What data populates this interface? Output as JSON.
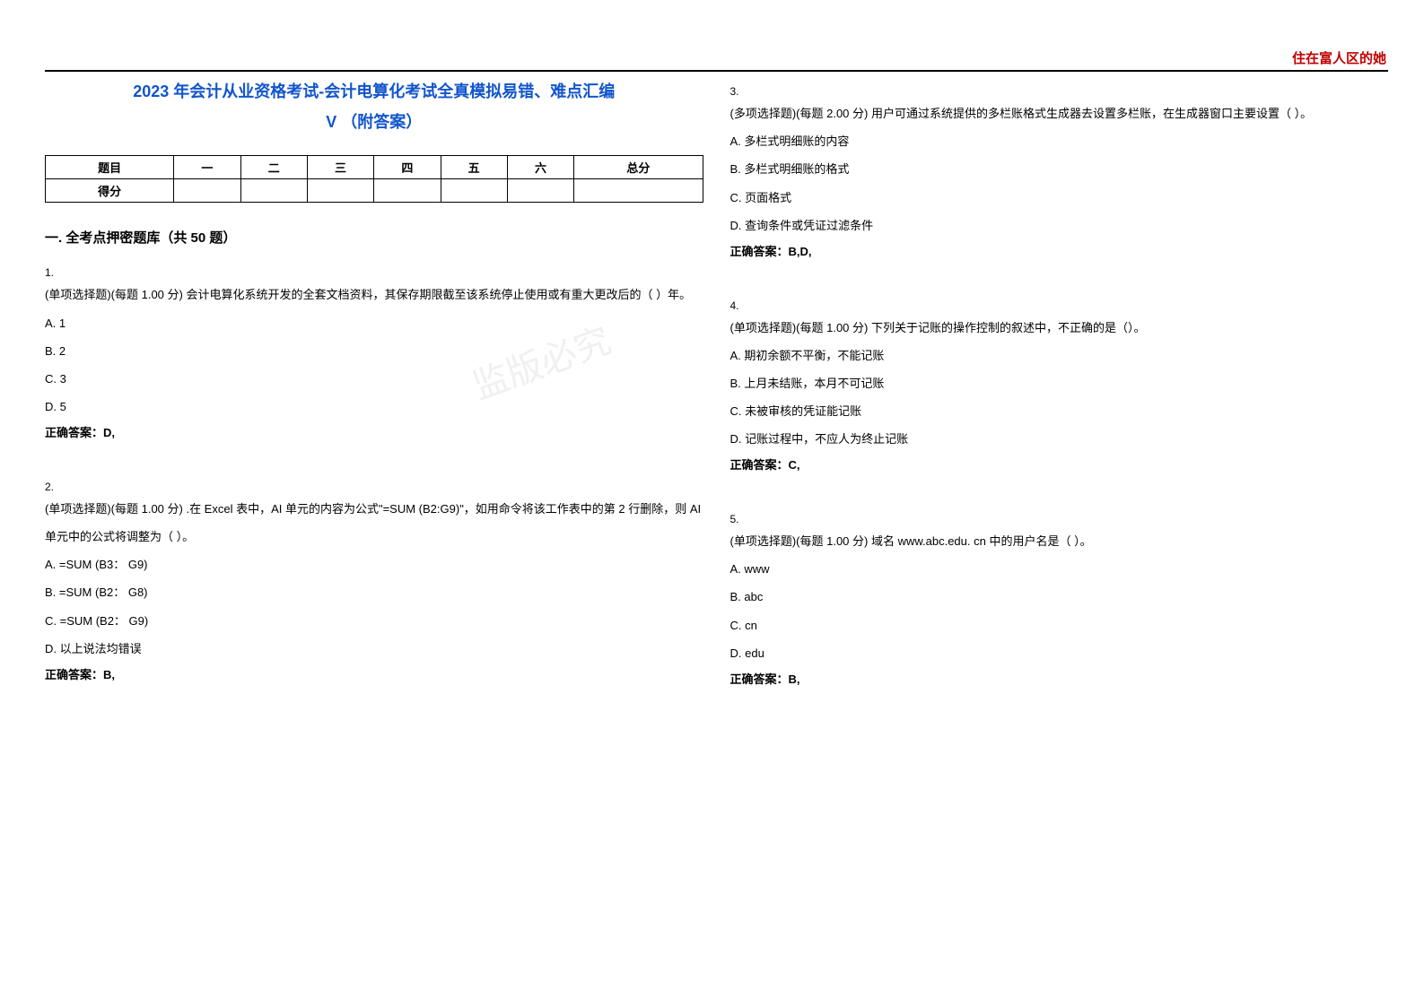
{
  "header": {
    "right_text": "住在富人区的她",
    "line_color": "#000000"
  },
  "title": {
    "line1": "2023 年会计从业资格考试-会计电算化考试全真模拟易错、难点汇编",
    "line2": "V （附答案）",
    "color": "#1155cc",
    "fontsize": 18
  },
  "score_table": {
    "headers": [
      "题目",
      "一",
      "二",
      "三",
      "四",
      "五",
      "六",
      "总分"
    ],
    "row_label": "得分",
    "border_color": "#000000",
    "fontsize": 13
  },
  "section": {
    "header": "一. 全考点押密题库（共 50 题）"
  },
  "questions": [
    {
      "num": "1.",
      "text": "(单项选择题)(每题 1.00 分) 会计电算化系统开发的全套文档资料，其保存期限截至该系统停止使用或有重大更改后的（ ）年。",
      "options": [
        "A. 1",
        "B. 2",
        "C. 3",
        "D. 5"
      ],
      "answer": "正确答案：D,"
    },
    {
      "num": "2.",
      "text": "(单项选择题)(每题 1.00 分) .在 Excel 表中，AI 单元的内容为公式\"=SUM (B2:G9)\"，如用命令将该工作表中的第 2 行删除，则 AI 单元中的公式将调整为（ ）。",
      "options": [
        "A. =SUM (B3： G9)",
        "B. =SUM (B2： G8)",
        "C. =SUM (B2： G9)",
        "D. 以上说法均错误"
      ],
      "answer": "正确答案：B,"
    },
    {
      "num": "3.",
      "text": "(多项选择题)(每题 2.00 分) 用户可通过系统提供的多栏账格式生成器去设置多栏账，在生成器窗口主要设置（  ）。",
      "options": [
        "A. 多栏式明细账的内容",
        "B. 多栏式明细账的格式",
        "C. 页面格式",
        "D. 查询条件或凭证过滤条件"
      ],
      "answer": "正确答案：B,D,"
    },
    {
      "num": "4.",
      "text": "(单项选择题)(每题 1.00 分) 下列关于记账的操作控制的叙述中，不正确的是（）。",
      "options": [
        "A. 期初余额不平衡，不能记账",
        "B. 上月未结账，本月不可记账",
        "C. 未被审核的凭证能记账",
        "D. 记账过程中，不应人为终止记账"
      ],
      "answer": "正确答案：C,"
    },
    {
      "num": "5.",
      "text": "(单项选择题)(每题 1.00 分) 域名 www.abc.edu. cn 中的用户名是（ ）。",
      "options": [
        "A. www",
        "B. abc",
        "C. cn",
        "D. edu"
      ],
      "answer": "正确答案：B,"
    }
  ],
  "watermark": {
    "text": "监版必究",
    "opacity": 0.12
  },
  "colors": {
    "background": "#ffffff",
    "text": "#000000",
    "header_accent": "#c00000"
  }
}
